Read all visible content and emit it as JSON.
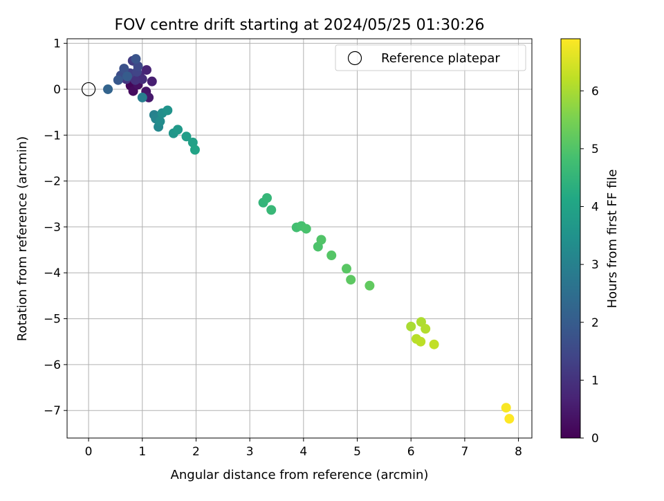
{
  "chart_data": {
    "type": "scatter",
    "title": "FOV centre drift starting at 2024/05/25 01:30:26",
    "xlabel": "Angular distance from reference (arcmin)",
    "ylabel": "Rotation from reference (arcmin)",
    "xlim": [
      -0.4,
      8.25
    ],
    "ylim": [
      -7.6,
      1.1
    ],
    "xticks": [
      "0",
      "1",
      "2",
      "3",
      "4",
      "5",
      "6",
      "7",
      "8"
    ],
    "yticks": [
      "1",
      "0",
      "−1",
      "−2",
      "−3",
      "−4",
      "−5",
      "−6",
      "−7"
    ],
    "grid": true,
    "legend": {
      "location": "upper right",
      "label": "Reference platepar"
    },
    "reference_point": {
      "x": 0,
      "y": 0
    },
    "colorbar": {
      "label": "Hours from first FF file",
      "range": [
        0,
        6.9
      ],
      "ticks": [
        "0",
        "1",
        "2",
        "3",
        "4",
        "5",
        "6"
      ],
      "colormap": "viridis"
    },
    "series": [
      {
        "points": [
          {
            "x": 0.78,
            "y": 0.08,
            "h": 0.1
          },
          {
            "x": 0.83,
            "y": -0.04,
            "h": 0.2
          },
          {
            "x": 0.92,
            "y": 0.1,
            "h": 0.3
          },
          {
            "x": 1.07,
            "y": -0.05,
            "h": 0.4
          },
          {
            "x": 1.12,
            "y": -0.18,
            "h": 0.5
          },
          {
            "x": 1.18,
            "y": 0.17,
            "h": 0.6
          },
          {
            "x": 1.08,
            "y": 0.42,
            "h": 0.7
          },
          {
            "x": 0.95,
            "y": 0.3,
            "h": 0.8
          },
          {
            "x": 1.0,
            "y": 0.22,
            "h": 0.9
          },
          {
            "x": 0.87,
            "y": 0.2,
            "h": 1.0
          },
          {
            "x": 0.7,
            "y": 0.22,
            "h": 1.1
          },
          {
            "x": 0.82,
            "y": 0.62,
            "h": 1.2
          },
          {
            "x": 0.77,
            "y": 0.35,
            "h": 1.3
          },
          {
            "x": 0.9,
            "y": 0.38,
            "h": 1.4
          },
          {
            "x": 0.92,
            "y": 0.5,
            "h": 1.5
          },
          {
            "x": 0.6,
            "y": 0.3,
            "h": 1.6
          },
          {
            "x": 0.66,
            "y": 0.45,
            "h": 1.7
          },
          {
            "x": 0.88,
            "y": 0.66,
            "h": 1.8
          },
          {
            "x": 0.55,
            "y": 0.2,
            "h": 1.9
          },
          {
            "x": 0.72,
            "y": 0.28,
            "h": 2.0
          },
          {
            "x": 0.36,
            "y": 0.0,
            "h": 2.2
          },
          {
            "x": 1.0,
            "y": -0.18,
            "h": 2.9
          },
          {
            "x": 1.22,
            "y": -0.56,
            "h": 3.0
          },
          {
            "x": 1.25,
            "y": -0.64,
            "h": 3.1
          },
          {
            "x": 1.3,
            "y": -0.82,
            "h": 3.2
          },
          {
            "x": 1.33,
            "y": -0.7,
            "h": 3.3
          },
          {
            "x": 1.37,
            "y": -0.52,
            "h": 3.4
          },
          {
            "x": 1.47,
            "y": -0.46,
            "h": 3.5
          },
          {
            "x": 1.58,
            "y": -0.96,
            "h": 3.6
          },
          {
            "x": 1.66,
            "y": -0.88,
            "h": 3.7
          },
          {
            "x": 1.82,
            "y": -1.03,
            "h": 3.8
          },
          {
            "x": 1.94,
            "y": -1.16,
            "h": 3.9
          },
          {
            "x": 1.98,
            "y": -1.32,
            "h": 4.0
          },
          {
            "x": 3.25,
            "y": -2.47,
            "h": 4.5
          },
          {
            "x": 3.32,
            "y": -2.37,
            "h": 4.55
          },
          {
            "x": 3.4,
            "y": -2.63,
            "h": 4.6
          },
          {
            "x": 3.87,
            "y": -3.01,
            "h": 4.8
          },
          {
            "x": 3.96,
            "y": -2.98,
            "h": 4.85
          },
          {
            "x": 4.05,
            "y": -3.04,
            "h": 4.9
          },
          {
            "x": 4.27,
            "y": -3.43,
            "h": 4.95
          },
          {
            "x": 4.33,
            "y": -3.28,
            "h": 5.0
          },
          {
            "x": 4.52,
            "y": -3.62,
            "h": 5.05
          },
          {
            "x": 4.8,
            "y": -3.91,
            "h": 5.1
          },
          {
            "x": 4.88,
            "y": -4.15,
            "h": 5.15
          },
          {
            "x": 5.23,
            "y": -4.28,
            "h": 5.2
          },
          {
            "x": 6.0,
            "y": -5.17,
            "h": 6.0
          },
          {
            "x": 6.19,
            "y": -5.07,
            "h": 6.05
          },
          {
            "x": 6.27,
            "y": -5.22,
            "h": 6.1
          },
          {
            "x": 6.1,
            "y": -5.44,
            "h": 6.15
          },
          {
            "x": 6.18,
            "y": -5.5,
            "h": 6.2
          },
          {
            "x": 6.43,
            "y": -5.56,
            "h": 6.25
          },
          {
            "x": 7.77,
            "y": -6.94,
            "h": 6.85
          },
          {
            "x": 7.83,
            "y": -7.18,
            "h": 6.9
          }
        ]
      }
    ]
  }
}
